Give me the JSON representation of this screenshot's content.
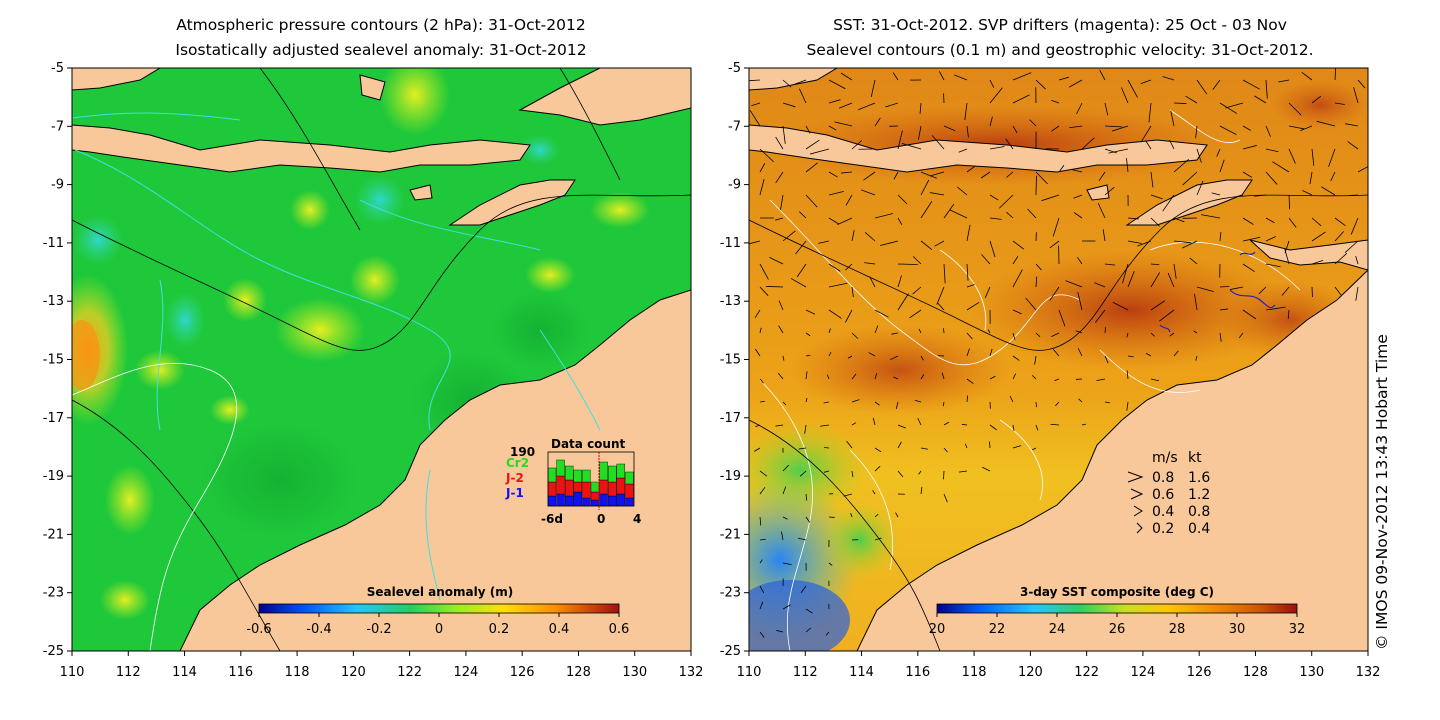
{
  "left_panel": {
    "title_line1": "Atmospheric pressure contours (2 hPa): 31-Oct-2012",
    "title_line2": "Isostatically adjusted sealevel anomaly: 31-Oct-2012",
    "colorbar_label": "Sealevel anomaly (m)",
    "colorbar_ticks": [
      "-0.6",
      "-0.4",
      "-0.2",
      "0",
      "0.2",
      "0.4",
      "0.6"
    ],
    "data_count": {
      "title": "Data count",
      "max_label": "190",
      "series": [
        {
          "name": "Cr2",
          "color": "#22dd22"
        },
        {
          "name": "J-2",
          "color": "#ee1111"
        },
        {
          "name": "J-1",
          "color": "#1111ee"
        }
      ],
      "x_left": "-6d",
      "x_mid": "0",
      "x_right": "4"
    }
  },
  "right_panel": {
    "title_line1": "SST: 31-Oct-2012. SVP drifters (magenta): 25 Oct - 03 Nov",
    "title_line2": "Sealevel contours (0.1 m) and geostrophic velocity: 31-Oct-2012.",
    "colorbar_label": "3-day SST composite (deg C)",
    "colorbar_ticks": [
      "20",
      "22",
      "24",
      "26",
      "28",
      "30",
      "32"
    ],
    "velocity_legend": {
      "header_ms": "m/s",
      "header_kt": "kt",
      "rows": [
        {
          "ms": "0.8",
          "kt": "1.6"
        },
        {
          "ms": "0.6",
          "kt": "1.2"
        },
        {
          "ms": "0.4",
          "kt": "0.8"
        },
        {
          "ms": "0.2",
          "kt": "0.4"
        }
      ]
    }
  },
  "y_ticks": [
    "-5",
    "-7",
    "-9",
    "-11",
    "-13",
    "-15",
    "-17",
    "-19",
    "-21",
    "-23",
    "-25"
  ],
  "x_ticks": [
    "110",
    "112",
    "114",
    "116",
    "118",
    "120",
    "122",
    "124",
    "126",
    "128",
    "130",
    "132"
  ],
  "credit": "© IMOS 09-Nov-2012 13:43 Hobart Time",
  "colors": {
    "land": "#f8c89a",
    "sla_base": "#1fc83a",
    "sst_base": "#e89a10",
    "contour_cyan": "#40e0e0"
  }
}
